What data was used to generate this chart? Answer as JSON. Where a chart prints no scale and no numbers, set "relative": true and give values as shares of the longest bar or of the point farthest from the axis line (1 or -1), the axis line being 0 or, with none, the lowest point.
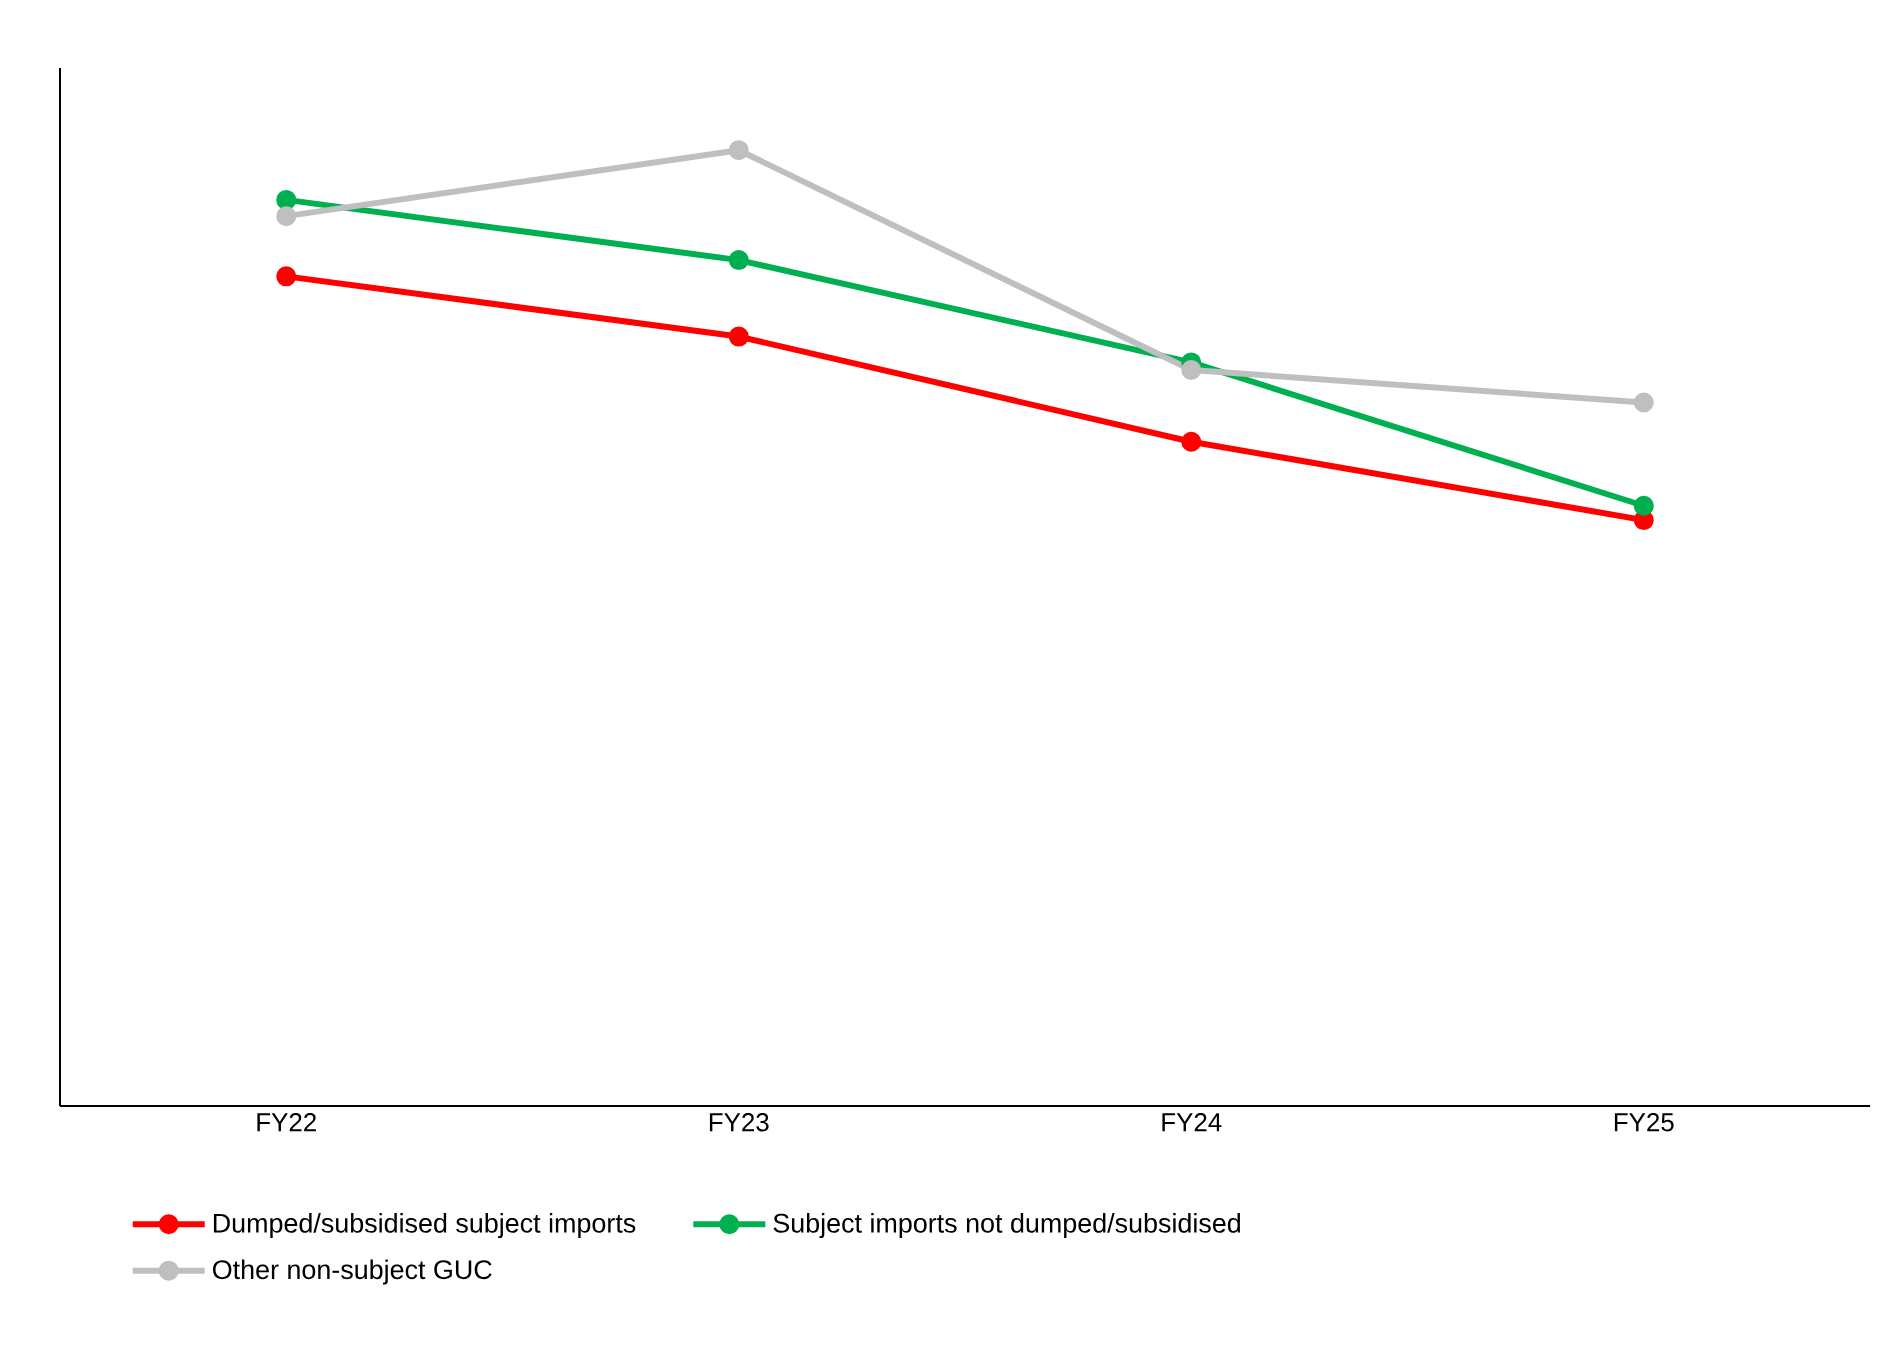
{
  "chart_data": {
    "type": "line",
    "relative": true,
    "categories": [
      "FY22",
      "FY23",
      "FY24",
      "FY25"
    ],
    "series": [
      {
        "name": "Dumped/subsidised subject imports",
        "color": "#ff0000",
        "values": [
          0.868,
          0.805,
          0.695,
          0.613
        ]
      },
      {
        "name": "Subject imports not dumped/subsidised",
        "color": "#00b050",
        "values": [
          0.948,
          0.885,
          0.778,
          0.628
        ]
      },
      {
        "name": "Other non-subject GUC",
        "color": "#bfbfbf",
        "values": [
          0.931,
          1,
          0.77,
          0.736
        ]
      }
    ],
    "marker": "circle",
    "legend": "bottom",
    "grid": false
  }
}
